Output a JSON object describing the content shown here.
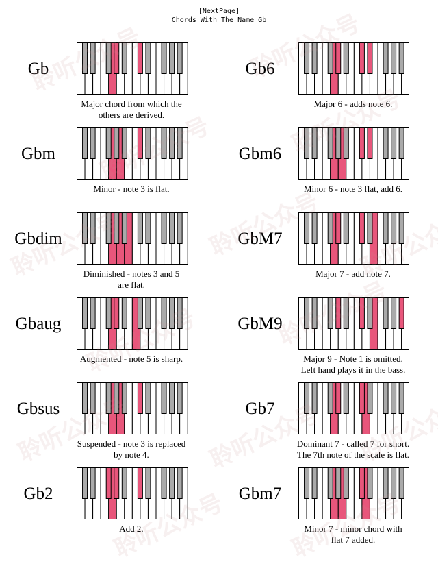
{
  "header": {
    "nav_link": "[NextPage]",
    "title": "Chords With The Name Gb"
  },
  "colors": {
    "highlight": "#e8567b",
    "black_key": "#aaaaaa",
    "white_key": "#ffffff",
    "outline": "#000000"
  },
  "watermark": "聆听公众号",
  "chords": [
    {
      "name": "Gb",
      "desc": [
        "Major chord from which the",
        "others are derived."
      ],
      "keys": [
        "W4",
        "B4",
        "B6"
      ]
    },
    {
      "name": "Gbm",
      "desc": [
        "Minor - note 3 is flat."
      ],
      "keys": [
        "W4",
        "W5",
        "B6"
      ]
    },
    {
      "name": "Gbdim",
      "desc": [
        "Diminished - notes 3 and 5",
        "are flat."
      ],
      "keys": [
        "W4",
        "W5",
        "W6"
      ]
    },
    {
      "name": "Gbaug",
      "desc": [
        "Augmented - note 5 is sharp."
      ],
      "keys": [
        "W4",
        "B4",
        "W7"
      ]
    },
    {
      "name": "Gbsus",
      "desc": [
        "Suspended - note 3 is replaced",
        "by note 4."
      ],
      "keys": [
        "W4",
        "W5",
        "B6"
      ]
    },
    {
      "name": "Gb2",
      "desc": [
        "Add 2."
      ],
      "keys": [
        "W4",
        "B3",
        "B4",
        "B6"
      ]
    },
    {
      "name": "Gb6",
      "desc": [
        "Major 6 - adds note 6."
      ],
      "keys": [
        "W4",
        "B4",
        "B6",
        "B7"
      ]
    },
    {
      "name": "Gbm6",
      "desc": [
        "Minor 6 - note 3 flat, add 6."
      ],
      "keys": [
        "W4",
        "W5",
        "B6",
        "B7"
      ]
    },
    {
      "name": "GbM7",
      "desc": [
        "Major 7 - add note 7."
      ],
      "keys": [
        "W4",
        "B4",
        "B6",
        "W9"
      ]
    },
    {
      "name": "GbM9",
      "desc": [
        "Major 9 - Note 1 is omitted.",
        "Left hand plays it in the bass."
      ],
      "keys": [
        "B4",
        "B6",
        "W9",
        "B10"
      ]
    },
    {
      "name": "Gb7",
      "desc": [
        "Dominant 7 - called 7 for short.",
        "The 7th note of the scale is flat."
      ],
      "keys": [
        "W4",
        "B4",
        "B6",
        "W8"
      ]
    },
    {
      "name": "Gbm7",
      "desc": [
        "Minor 7 - minor chord with",
        "flat 7 added."
      ],
      "keys": [
        "W4",
        "W5",
        "B6",
        "W8"
      ]
    }
  ]
}
